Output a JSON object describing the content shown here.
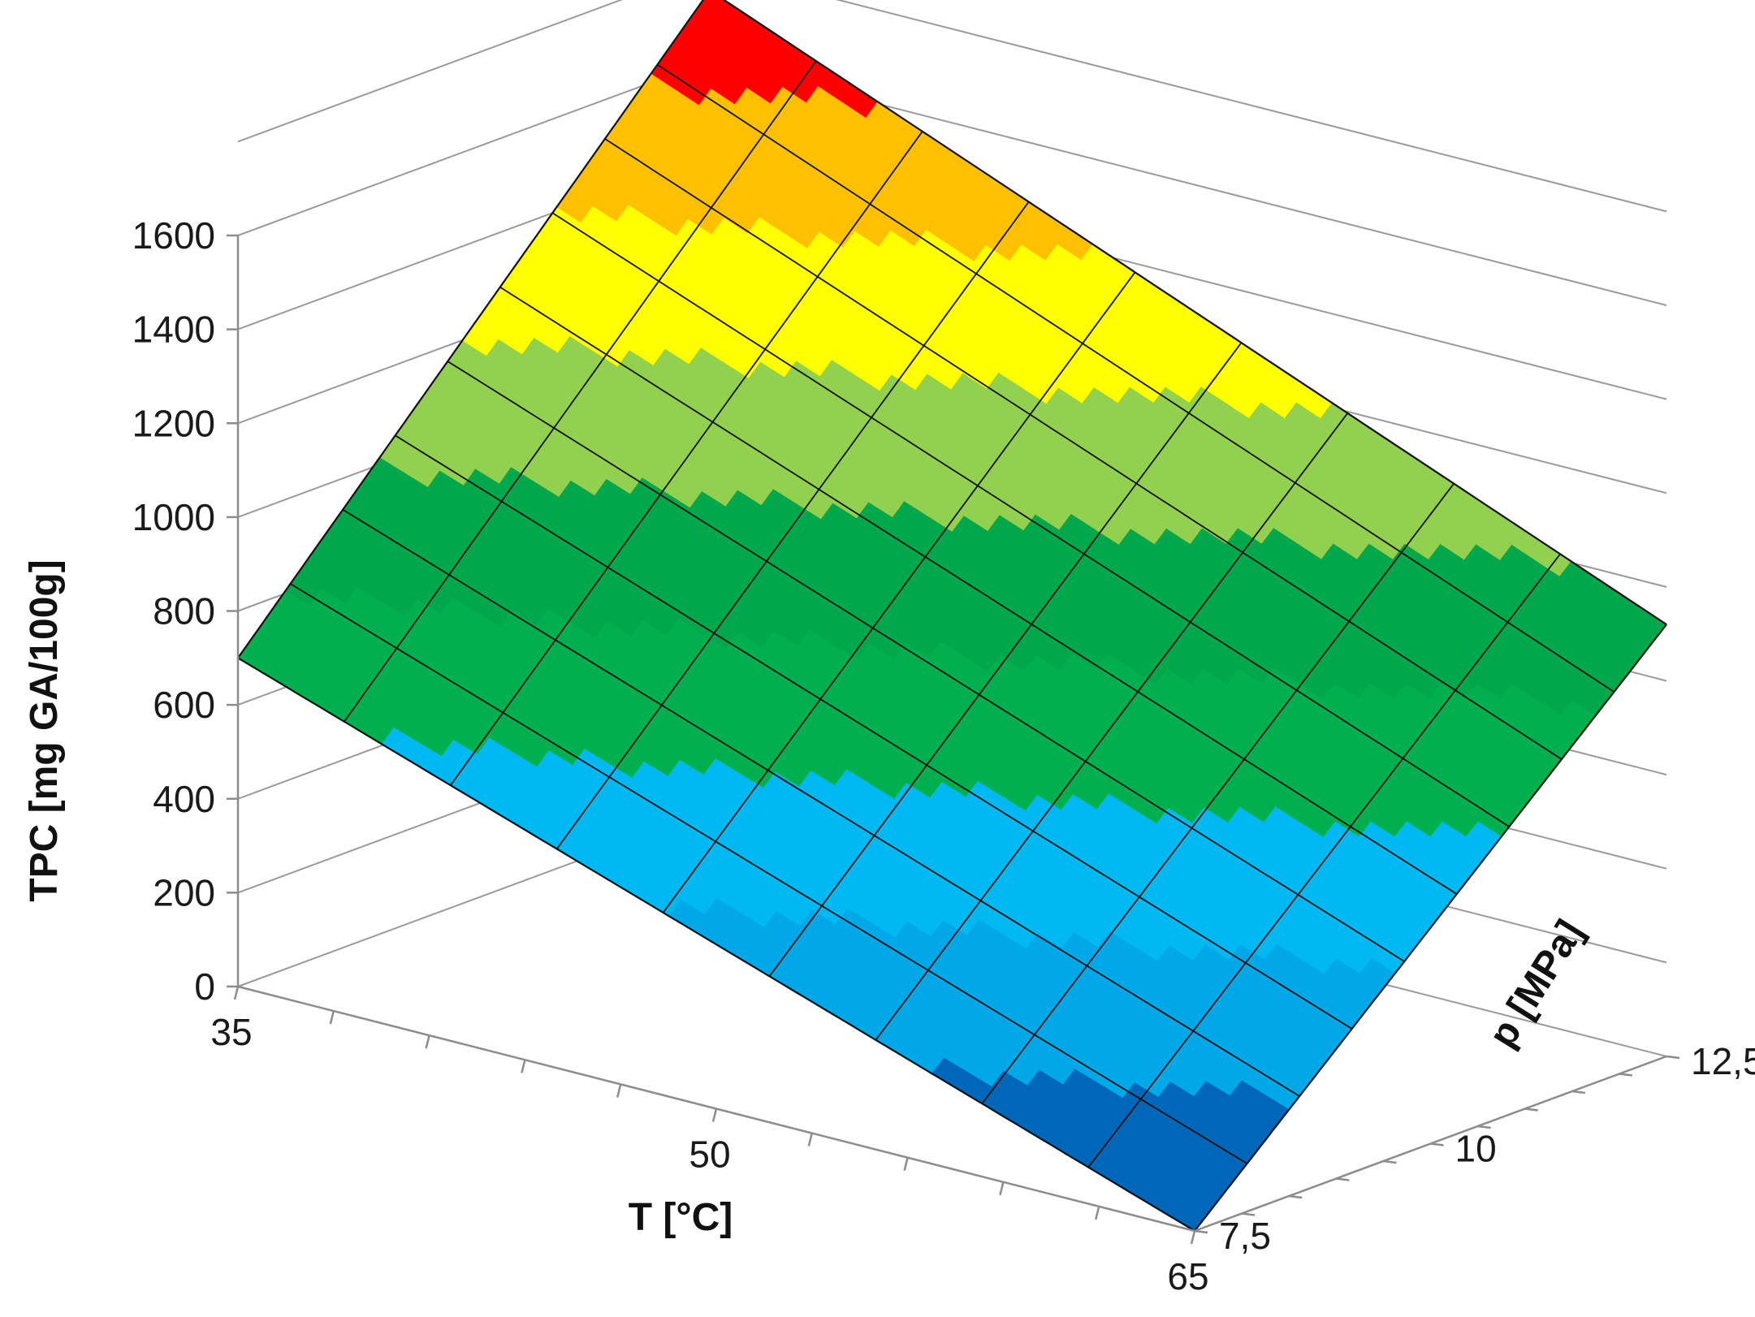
{
  "chart_data": {
    "type": "surface",
    "title": "",
    "zlabel": "TPC [mg GA/100g]",
    "xlabel": "T [°C]",
    "ylabel": "p [MPa]",
    "x_ticks": [
      "35",
      "50",
      "65"
    ],
    "y_ticks": [
      "7,5",
      "10",
      "12,5"
    ],
    "z_ticks": [
      "0",
      "200",
      "400",
      "600",
      "800",
      "1000",
      "1200",
      "1400",
      "1600"
    ],
    "xlim": [
      35,
      65
    ],
    "ylim": [
      7.5,
      12.5
    ],
    "zlim": [
      0,
      1600
    ],
    "corner_values": [
      {
        "T": 35,
        "p": 7.5,
        "TPC": 700
      },
      {
        "T": 65,
        "p": 7.5,
        "TPC": 0
      },
      {
        "T": 35,
        "p": 12.5,
        "TPC": 1750
      },
      {
        "T": 65,
        "p": 12.5,
        "TPC": 920
      }
    ],
    "color_bands": [
      {
        "range": [
          0,
          200
        ],
        "color": "#0066b8"
      },
      {
        "range": [
          200,
          400
        ],
        "color": "#00a8e8"
      },
      {
        "range": [
          400,
          600
        ],
        "color": "#00b9f2"
      },
      {
        "range": [
          600,
          800
        ],
        "color": "#00b04f"
      },
      {
        "range": [
          800,
          1000
        ],
        "color": "#00a84c"
      },
      {
        "range": [
          1000,
          1200
        ],
        "color": "#92d050"
      },
      {
        "range": [
          1200,
          1400
        ],
        "color": "#ffff00"
      },
      {
        "range": [
          1400,
          1600
        ],
        "color": "#ffc000"
      },
      {
        "range": [
          1600,
          1800
        ],
        "color": "#ff0000"
      }
    ],
    "grid": true,
    "legend": "none"
  }
}
